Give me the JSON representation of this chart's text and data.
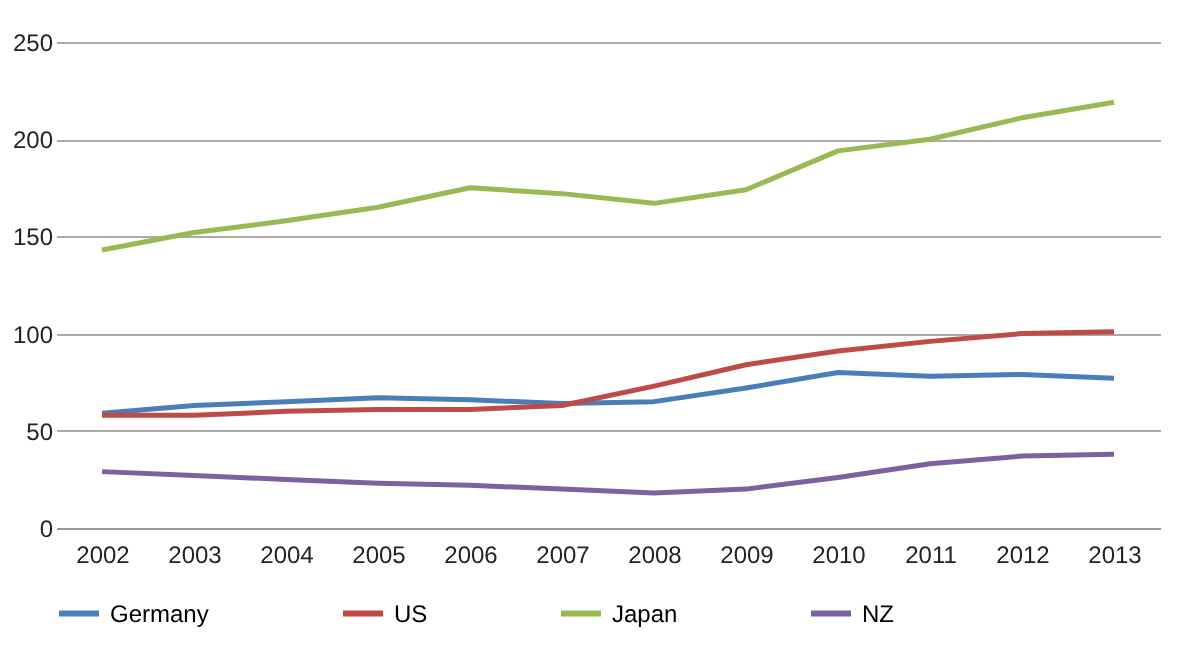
{
  "chart_data": {
    "type": "line",
    "categories": [
      "2002",
      "2003",
      "2004",
      "2005",
      "2006",
      "2007",
      "2008",
      "2009",
      "2010",
      "2011",
      "2012",
      "2013"
    ],
    "series": [
      {
        "name": "Germany",
        "color": "#4a7ebb",
        "values": [
          59,
          63,
          65,
          67,
          66,
          64,
          65,
          72,
          80,
          78,
          79,
          77
        ]
      },
      {
        "name": "US",
        "color": "#be4b48",
        "values": [
          58,
          58,
          60,
          61,
          61,
          63,
          73,
          84,
          91,
          96,
          100,
          101
        ]
      },
      {
        "name": "Japan",
        "color": "#98b954",
        "values": [
          143,
          152,
          158,
          165,
          175,
          172,
          167,
          174,
          194,
          200,
          211,
          219
        ]
      },
      {
        "name": "NZ",
        "color": "#7d60a0",
        "values": [
          29,
          27,
          25,
          23,
          22,
          20,
          18,
          20,
          26,
          33,
          37,
          38
        ]
      }
    ],
    "ylim": [
      0,
      250
    ],
    "yticks": [
      0,
      50,
      100,
      150,
      200,
      250
    ],
    "grid": "y",
    "legend": "bottom",
    "marker": "none",
    "line_style": "solid"
  }
}
